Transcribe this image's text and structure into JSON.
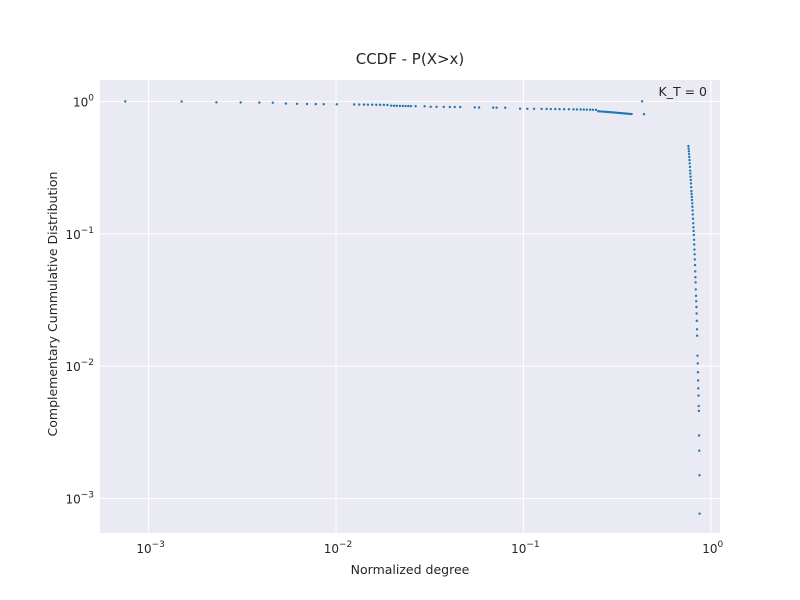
{
  "chart_data": {
    "type": "scatter",
    "title": "CCDF - P(X>x)",
    "xlabel": "Normalized degree",
    "ylabel": "Complementary Cummulative Distribution",
    "xscale": "log",
    "yscale": "log",
    "xlim": [
      0.00055,
      1.12
    ],
    "ylim": [
      0.00055,
      1.45
    ],
    "grid": true,
    "annotation": "K_T = 0",
    "marker_color": "#1f77b4",
    "background_color": "#eaeaf2",
    "x_ticks": [
      {
        "value": 0.001,
        "base": "10",
        "exp": "−3"
      },
      {
        "value": 0.01,
        "base": "10",
        "exp": "−2"
      },
      {
        "value": 0.1,
        "base": "10",
        "exp": "−1"
      },
      {
        "value": 1,
        "base": "10",
        "exp": "0"
      }
    ],
    "y_ticks": [
      {
        "value": 0.001,
        "base": "10",
        "exp": "−3"
      },
      {
        "value": 0.01,
        "base": "10",
        "exp": "−2"
      },
      {
        "value": 0.1,
        "base": "10",
        "exp": "−1"
      },
      {
        "value": 1,
        "base": "10",
        "exp": "0"
      }
    ],
    "points": [
      [
        0.00075,
        0.999
      ],
      [
        0.0015,
        0.997
      ],
      [
        0.0023,
        0.983
      ],
      [
        0.0031,
        0.981
      ],
      [
        0.0039,
        0.979
      ],
      [
        0.0046,
        0.977
      ],
      [
        0.0054,
        0.962
      ],
      [
        0.0062,
        0.958
      ],
      [
        0.007,
        0.956
      ],
      [
        0.0078,
        0.954
      ],
      [
        0.0086,
        0.952
      ],
      [
        0.0101,
        0.95
      ],
      [
        0.0125,
        0.948
      ],
      [
        0.0133,
        0.946
      ],
      [
        0.0141,
        0.945
      ],
      [
        0.0148,
        0.944
      ],
      [
        0.0156,
        0.943
      ],
      [
        0.0164,
        0.942
      ],
      [
        0.0172,
        0.941
      ],
      [
        0.018,
        0.94
      ],
      [
        0.0188,
        0.939
      ],
      [
        0.0197,
        0.928
      ],
      [
        0.0204,
        0.926
      ],
      [
        0.0211,
        0.925
      ],
      [
        0.0219,
        0.924
      ],
      [
        0.0227,
        0.923
      ],
      [
        0.0235,
        0.922
      ],
      [
        0.0243,
        0.921
      ],
      [
        0.0251,
        0.92
      ],
      [
        0.0266,
        0.919
      ],
      [
        0.0297,
        0.918
      ],
      [
        0.032,
        0.91
      ],
      [
        0.0344,
        0.909
      ],
      [
        0.0376,
        0.908
      ],
      [
        0.0405,
        0.907
      ],
      [
        0.043,
        0.906
      ],
      [
        0.046,
        0.905
      ],
      [
        0.055,
        0.9
      ],
      [
        0.058,
        0.899
      ],
      [
        0.069,
        0.897
      ],
      [
        0.072,
        0.896
      ],
      [
        0.08,
        0.895
      ],
      [
        0.096,
        0.88
      ],
      [
        0.105,
        0.879
      ],
      [
        0.114,
        0.878
      ],
      [
        0.125,
        0.877
      ],
      [
        0.133,
        0.876
      ],
      [
        0.14,
        0.875
      ],
      [
        0.148,
        0.874
      ],
      [
        0.156,
        0.873
      ],
      [
        0.165,
        0.872
      ],
      [
        0.175,
        0.871
      ],
      [
        0.185,
        0.87
      ],
      [
        0.193,
        0.869
      ],
      [
        0.202,
        0.868
      ],
      [
        0.21,
        0.867
      ],
      [
        0.218,
        0.866
      ],
      [
        0.227,
        0.865
      ],
      [
        0.235,
        0.864
      ],
      [
        0.244,
        0.863
      ],
      [
        0.251,
        0.842
      ],
      [
        0.256,
        0.84
      ],
      [
        0.262,
        0.838
      ],
      [
        0.268,
        0.836
      ],
      [
        0.274,
        0.834
      ],
      [
        0.28,
        0.832
      ],
      [
        0.286,
        0.83
      ],
      [
        0.292,
        0.828
      ],
      [
        0.298,
        0.826
      ],
      [
        0.304,
        0.824
      ],
      [
        0.31,
        0.822
      ],
      [
        0.316,
        0.82
      ],
      [
        0.323,
        0.818
      ],
      [
        0.329,
        0.816
      ],
      [
        0.335,
        0.814
      ],
      [
        0.342,
        0.812
      ],
      [
        0.349,
        0.81
      ],
      [
        0.356,
        0.808
      ],
      [
        0.363,
        0.806
      ],
      [
        0.37,
        0.804
      ],
      [
        0.378,
        0.802
      ],
      [
        0.43,
        1.0
      ],
      [
        0.44,
        0.8
      ],
      [
        0.76,
        0.46
      ],
      [
        0.762,
        0.44
      ],
      [
        0.764,
        0.42
      ],
      [
        0.766,
        0.4
      ],
      [
        0.768,
        0.38
      ],
      [
        0.77,
        0.36
      ],
      [
        0.772,
        0.34
      ],
      [
        0.774,
        0.32
      ],
      [
        0.776,
        0.3
      ],
      [
        0.778,
        0.285
      ],
      [
        0.78,
        0.27
      ],
      [
        0.782,
        0.255
      ],
      [
        0.784,
        0.24
      ],
      [
        0.786,
        0.225
      ],
      [
        0.788,
        0.21
      ],
      [
        0.79,
        0.2
      ],
      [
        0.792,
        0.19
      ],
      [
        0.794,
        0.18
      ],
      [
        0.796,
        0.17
      ],
      [
        0.798,
        0.16
      ],
      [
        0.8,
        0.15
      ],
      [
        0.802,
        0.14
      ],
      [
        0.804,
        0.13
      ],
      [
        0.806,
        0.12
      ],
      [
        0.808,
        0.112
      ],
      [
        0.81,
        0.105
      ],
      [
        0.812,
        0.098
      ],
      [
        0.814,
        0.09
      ],
      [
        0.816,
        0.083
      ],
      [
        0.818,
        0.076
      ],
      [
        0.82,
        0.07
      ],
      [
        0.822,
        0.064
      ],
      [
        0.824,
        0.058
      ],
      [
        0.826,
        0.052
      ],
      [
        0.828,
        0.047
      ],
      [
        0.83,
        0.043
      ],
      [
        0.832,
        0.038
      ],
      [
        0.834,
        0.034
      ],
      [
        0.836,
        0.031
      ],
      [
        0.838,
        0.028
      ],
      [
        0.84,
        0.025
      ],
      [
        0.842,
        0.022
      ],
      [
        0.844,
        0.019
      ],
      [
        0.846,
        0.017
      ],
      [
        0.85,
        0.012
      ],
      [
        0.852,
        0.0105
      ],
      [
        0.854,
        0.009
      ],
      [
        0.856,
        0.0078
      ],
      [
        0.858,
        0.0068
      ],
      [
        0.86,
        0.006
      ],
      [
        0.862,
        0.005
      ],
      [
        0.864,
        0.0046
      ],
      [
        0.866,
        0.003
      ],
      [
        0.868,
        0.0023
      ],
      [
        0.87,
        0.0015
      ],
      [
        0.872,
        0.00077
      ]
    ]
  }
}
